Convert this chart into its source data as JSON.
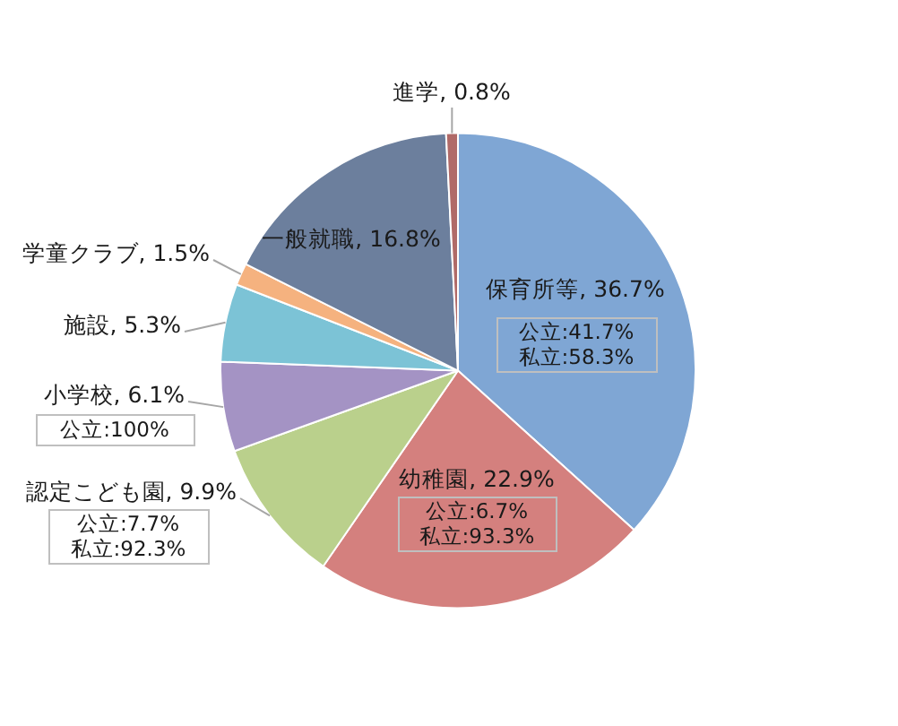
{
  "chart_data": {
    "type": "pie",
    "categories": [
      "保育所等",
      "幼稚園",
      "認定こども園",
      "小学校",
      "施設",
      "学童クラブ",
      "一般就職",
      "進学"
    ],
    "values": [
      36.7,
      22.9,
      9.9,
      6.1,
      5.3,
      1.5,
      16.8,
      0.8
    ],
    "colors": [
      "#7fa6d4",
      "#d4807e",
      "#bad08c",
      "#a493c4",
      "#7cc3d6",
      "#f5b27f",
      "#6c7f9d",
      "#b06a68"
    ],
    "value_labels": [
      "36.7%",
      "22.9%",
      "9.9%",
      "6.1%",
      "5.3%",
      "1.5%",
      "16.8%",
      "0.8%"
    ],
    "annotations": [
      "公立:41.7%\n私立:58.3%",
      "公立:6.7%\n私立:93.3%",
      "公立:7.7%\n私立:92.3%",
      "公立:100%"
    ],
    "legend": false
  }
}
